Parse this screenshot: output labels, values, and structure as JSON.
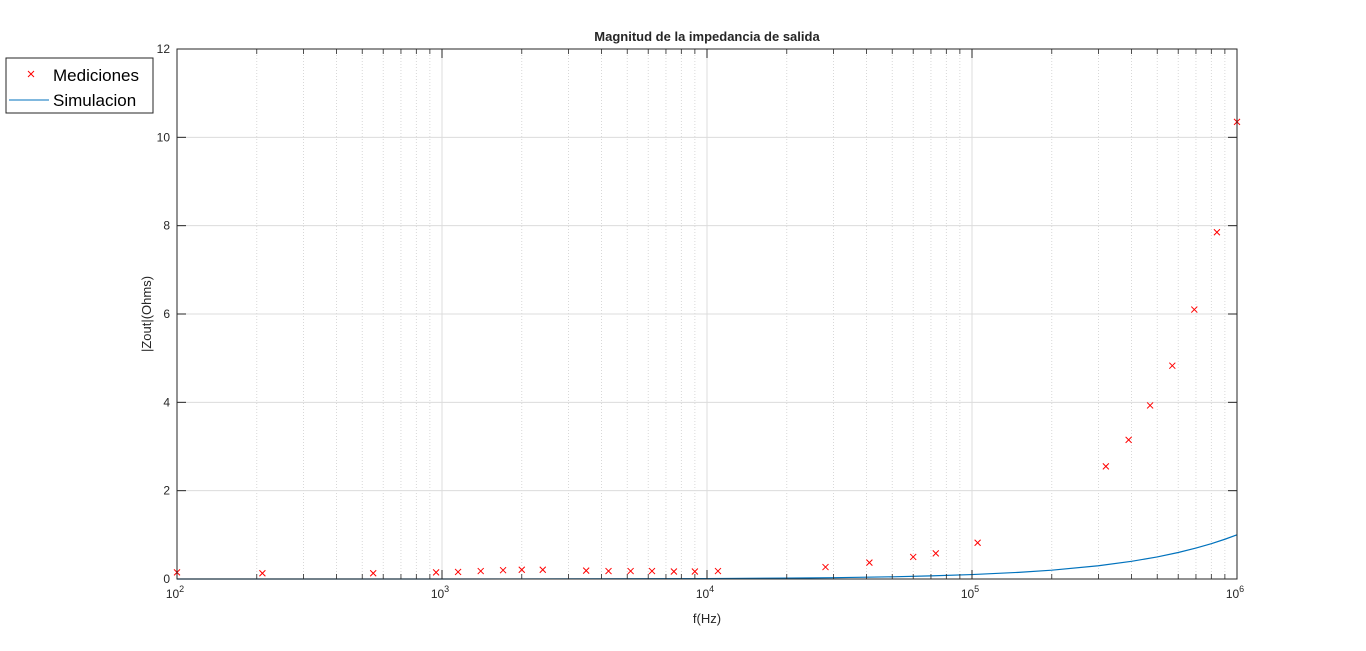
{
  "chart_data": {
    "type": "scatter",
    "title": "Magnitud de la impedancia de salida",
    "xlabel": "f(Hz)",
    "ylabel": "|Zout|(Ohms)",
    "x_scale": "log",
    "xlim": [
      100,
      1000000
    ],
    "ylim": [
      0,
      12
    ],
    "x_ticks": [
      {
        "value": 100,
        "base": "10",
        "exp": "2"
      },
      {
        "value": 1000,
        "base": "10",
        "exp": "3"
      },
      {
        "value": 10000,
        "base": "10",
        "exp": "4"
      },
      {
        "value": 100000,
        "base": "10",
        "exp": "5"
      },
      {
        "value": 1000000,
        "base": "10",
        "exp": "6"
      }
    ],
    "y_ticks": [
      0,
      2,
      4,
      6,
      8,
      10,
      12
    ],
    "y_tick_labels": [
      "0",
      "2",
      "4",
      "6",
      "8",
      "10",
      "12"
    ],
    "grid": true,
    "legend_position": "top-left-outside",
    "series": [
      {
        "name": "Mediciones",
        "style": "markers-x",
        "color": "#ff0000",
        "x": [
          100,
          210,
          550,
          950,
          1150,
          1400,
          1700,
          2000,
          2400,
          3500,
          4250,
          5150,
          6200,
          7500,
          9000,
          11000,
          28000,
          41000,
          60000,
          73000,
          105000,
          320000,
          390000,
          470000,
          570000,
          690000,
          840000,
          1000000
        ],
        "y": [
          0.15,
          0.13,
          0.13,
          0.15,
          0.16,
          0.18,
          0.2,
          0.21,
          0.21,
          0.19,
          0.18,
          0.18,
          0.18,
          0.17,
          0.17,
          0.18,
          0.27,
          0.37,
          0.5,
          0.58,
          0.82,
          2.55,
          3.15,
          3.93,
          4.83,
          6.1,
          7.85,
          10.35
        ]
      },
      {
        "name": "Simulacion",
        "style": "line",
        "color": "#0072bd",
        "x": [
          100,
          1000,
          3000,
          10000,
          20000,
          30000,
          50000,
          70000,
          100000,
          150000,
          200000,
          300000,
          400000,
          500000,
          600000,
          700000,
          800000,
          900000,
          1000000
        ],
        "y": [
          0.0,
          0.0,
          0.002,
          0.01,
          0.02,
          0.03,
          0.05,
          0.07,
          0.1,
          0.15,
          0.2,
          0.3,
          0.4,
          0.5,
          0.6,
          0.7,
          0.8,
          0.9,
          1.0
        ]
      }
    ]
  }
}
